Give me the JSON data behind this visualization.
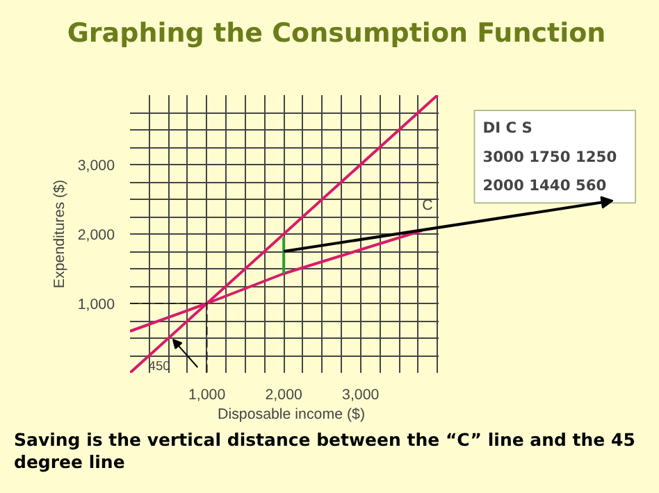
{
  "chart_data": {
    "type": "line",
    "title": "Graphing the Consumption Function",
    "xlabel": "Disposable income ($)",
    "ylabel": "Expenditures ($)",
    "xlim": [
      0,
      4000
    ],
    "ylim": [
      0,
      4000
    ],
    "xticks": [
      {
        "value": 250,
        "label": null
      },
      {
        "value": 500,
        "label": null
      },
      {
        "value": 750,
        "label": null
      },
      {
        "value": 1000,
        "label": "1,000"
      },
      {
        "value": 1250,
        "label": null
      },
      {
        "value": 1500,
        "label": null
      },
      {
        "value": 1750,
        "label": null
      },
      {
        "value": 2000,
        "label": "2,000"
      },
      {
        "value": 2250,
        "label": null
      },
      {
        "value": 2500,
        "label": null
      },
      {
        "value": 2750,
        "label": null
      },
      {
        "value": 3000,
        "label": "3,000"
      },
      {
        "value": 3250,
        "label": null
      },
      {
        "value": 3500,
        "label": null
      },
      {
        "value": 3750,
        "label": null
      }
    ],
    "yticks": [
      {
        "value": 250,
        "label": null
      },
      {
        "value": 500,
        "label": null
      },
      {
        "value": 750,
        "label": null
      },
      {
        "value": 1000,
        "label": "1,000"
      },
      {
        "value": 1250,
        "label": null
      },
      {
        "value": 1500,
        "label": null
      },
      {
        "value": 1750,
        "label": null
      },
      {
        "value": 2000,
        "label": "2,000"
      },
      {
        "value": 2250,
        "label": null
      },
      {
        "value": 2500,
        "label": null
      },
      {
        "value": 2750,
        "label": null
      },
      {
        "value": 3000,
        "label": "3,000"
      },
      {
        "value": 3250,
        "label": null
      },
      {
        "value": 3500,
        "label": null
      },
      {
        "value": 3750,
        "label": null
      }
    ],
    "grid": true,
    "series": [
      {
        "color": "#d81b6a",
        "x": [
          0,
          4000
        ],
        "values": [
          0,
          4000
        ]
      },
      {
        "color": "#d81b6a",
        "x": [
          0,
          1000,
          2000,
          3800
        ],
        "values": [
          600,
          1000,
          1430,
          2050
        ]
      },
      {
        "color": "#2e9b2e",
        "x": [
          2000,
          2000
        ],
        "values": [
          1430,
          1950
        ]
      },
      {
        "color": "#222222",
        "x": [
          0,
          1000,
          1000
        ],
        "values": [
          1000,
          1000,
          0
        ],
        "line_style": "dashed"
      }
    ],
    "annotations": [
      {
        "text": "C",
        "x": 3800,
        "y": 2050
      },
      "450",
      "DI      C       S\n3000  1750  1250\n2000  1440    560",
      "Saving is the vertical distance between the “C” line and the 45 degree line"
    ]
  }
}
